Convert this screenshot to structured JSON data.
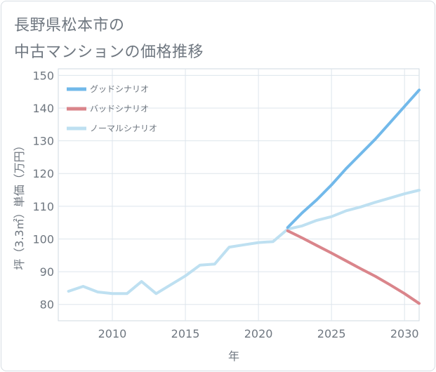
{
  "title": {
    "line1": "長野県松本市の",
    "line2": "中古マンションの価格推移"
  },
  "chart_data": {
    "type": "line",
    "xlabel": "年",
    "ylabel": "坪（3.3㎡）単価（万円）",
    "xlim": [
      2006.3,
      2031
    ],
    "ylim": [
      75,
      152
    ],
    "x_ticks": [
      2010,
      2015,
      2020,
      2025,
      2030
    ],
    "y_ticks": [
      80,
      90,
      100,
      110,
      120,
      130,
      140,
      150
    ],
    "grid": true,
    "legend_position": "top-left",
    "series": [
      {
        "name": "グッドシナリオ",
        "color": "#72b9ea",
        "x": [
          2022,
          2023,
          2024,
          2025,
          2026,
          2027,
          2028,
          2029,
          2030,
          2031
        ],
        "y": [
          103.5,
          108,
          112,
          116.5,
          121.5,
          126,
          130.5,
          135.5,
          140.5,
          145.5
        ]
      },
      {
        "name": "バッドシナリオ",
        "color": "#da858b",
        "x": [
          2022,
          2023,
          2024,
          2025,
          2026,
          2027,
          2028,
          2029,
          2030,
          2031
        ],
        "y": [
          102.5,
          100.3,
          98,
          95.7,
          93.3,
          90.9,
          88.6,
          86,
          83.3,
          80.3
        ]
      },
      {
        "name": "ノーマルシナリオ",
        "color": "#bee0f1",
        "x": [
          2007,
          2008,
          2009,
          2010,
          2011,
          2012,
          2013,
          2014,
          2015,
          2016,
          2017,
          2018,
          2019,
          2020,
          2021,
          2022,
          2023,
          2024,
          2025,
          2026,
          2027,
          2028,
          2029,
          2030,
          2031
        ],
        "y": [
          84,
          85.5,
          83.8,
          83.3,
          83.3,
          87,
          83.3,
          86,
          88.7,
          92,
          92.3,
          97.5,
          98.2,
          98.9,
          99.2,
          103,
          104,
          105.7,
          106.8,
          108.6,
          109.8,
          111.2,
          112.5,
          113.8,
          114.9
        ]
      }
    ]
  }
}
